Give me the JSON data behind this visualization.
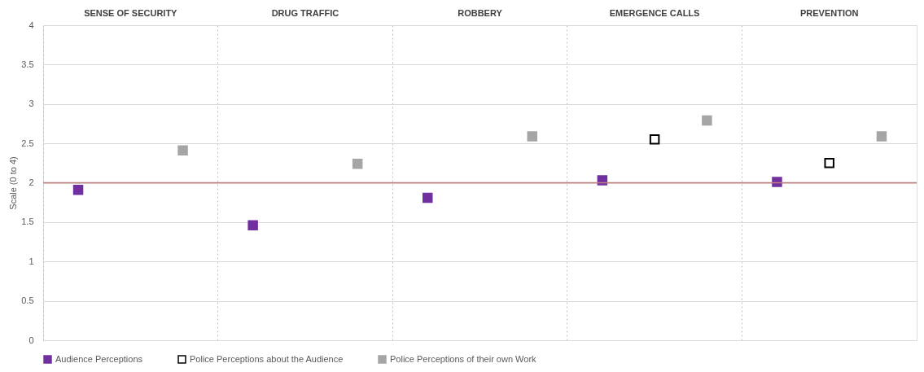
{
  "chart_data": {
    "type": "scatter",
    "ylabel": "Scale (0 to 4)",
    "categories": [
      "SENSE OF SECURITY",
      "DRUG TRAFFIC",
      "ROBBERY",
      "EMERGENCE CALLS",
      "PREVENTION"
    ],
    "series": [
      {
        "name": "Audience Perceptions",
        "color": "#7030a0",
        "values": [
          1.91,
          1.46,
          1.81,
          2.03,
          2.01
        ]
      },
      {
        "name": "Police Perceptions about the Audience",
        "color": "#000000",
        "values": [
          null,
          null,
          null,
          2.55,
          2.25
        ]
      },
      {
        "name": "Police Perceptions of their own Work",
        "color": "#a5a5a5",
        "values": [
          2.41,
          2.24,
          2.59,
          2.79,
          2.59
        ]
      }
    ],
    "ylim": [
      0,
      4
    ],
    "yticks": [
      0,
      0.5,
      1,
      1.5,
      2,
      2.5,
      3,
      3.5,
      4
    ],
    "ref_lines": [
      {
        "axis": "y",
        "value": 2,
        "color": "#c0807f"
      }
    ],
    "grid": true,
    "legend": "bottom",
    "marker": "square"
  }
}
